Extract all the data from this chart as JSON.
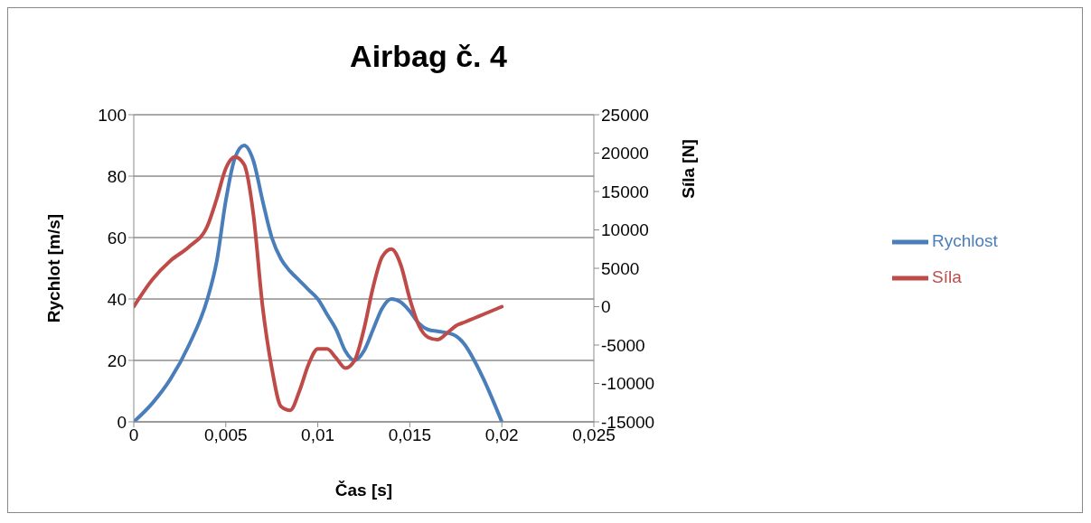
{
  "chart_data": {
    "type": "line",
    "title": "Airbag č. 4",
    "xlabel": "Čas [s]",
    "ylabel": "Rychlot [m/s]",
    "y2label": "Síla [N]",
    "x": [
      0,
      0.001,
      0.002,
      0.003,
      0.004,
      0.0045,
      0.005,
      0.0055,
      0.006,
      0.0065,
      0.007,
      0.0075,
      0.008,
      0.0085,
      0.009,
      0.0095,
      0.01,
      0.0105,
      0.011,
      0.0115,
      0.012,
      0.0125,
      0.013,
      0.0135,
      0.014,
      0.0145,
      0.015,
      0.0155,
      0.016,
      0.0165,
      0.017,
      0.0175,
      0.018,
      0.0185,
      0.019,
      0.02
    ],
    "series": [
      {
        "name": "Rychlost",
        "color": "#4a7ebb",
        "values": [
          0,
          6,
          14,
          25,
          40,
          52,
          72,
          86,
          90,
          85,
          72,
          60,
          53,
          49,
          46,
          43,
          40,
          35,
          30,
          23,
          20,
          23,
          30,
          37,
          40,
          39,
          36,
          32,
          30,
          29.5,
          29,
          28,
          25,
          20,
          14,
          0
        ]
      },
      {
        "name": "Síla",
        "color": "#be4b48",
        "axis": "y2",
        "values": [
          0,
          3500,
          6000,
          7800,
          10500,
          14000,
          18000,
          19500,
          18500,
          12000,
          0,
          -8000,
          -13000,
          -13500,
          -11000,
          -7500,
          -5500,
          -5500,
          -6700,
          -8000,
          -7000,
          -3000,
          2500,
          6500,
          7500,
          5500,
          1000,
          -2500,
          -4000,
          -4300,
          -3500,
          -2500,
          -2000,
          -1500,
          -1000,
          0
        ]
      }
    ],
    "xlim": [
      0,
      0.025
    ],
    "xticks": [
      0,
      {
        "value": 0.005,
        "label": "0,005"
      },
      {
        "value": 0.01,
        "label": "0,01"
      },
      {
        "value": 0.015,
        "label": "0,015"
      },
      {
        "value": 0.02,
        "label": "0,02"
      },
      {
        "value": 0.025,
        "label": "0,025"
      }
    ],
    "ylim": [
      0,
      100
    ],
    "yticks": [
      0,
      20,
      40,
      60,
      80,
      100
    ],
    "y2lim": [
      -15000,
      25000
    ],
    "y2ticks": [
      -15000,
      -10000,
      -5000,
      0,
      5000,
      10000,
      15000,
      20000,
      25000
    ],
    "grid": "y",
    "legend": "right",
    "marker": "none",
    "line_style": "solid"
  }
}
